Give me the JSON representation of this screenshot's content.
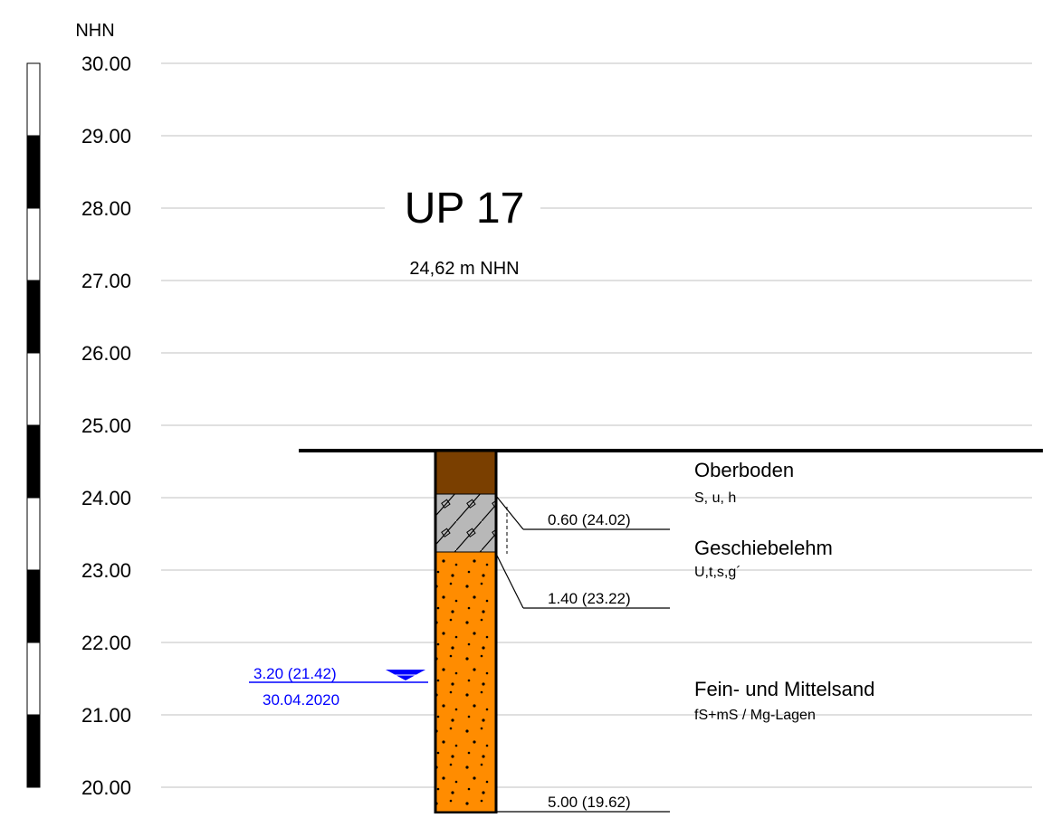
{
  "axis": {
    "unit": "NHN",
    "ticks": [
      "30.00",
      "29.00",
      "28.00",
      "27.00",
      "26.00",
      "25.00",
      "24.00",
      "23.00",
      "22.00",
      "21.00",
      "20.00"
    ]
  },
  "header": {
    "title": "UP 17",
    "elevation": "24,62 m  NHN"
  },
  "layers": [
    {
      "name": "Oberboden",
      "description": "S, u, h"
    },
    {
      "name": "Geschiebelehm",
      "description": "U,t,s,g´",
      "depth_label": "0.60 (24.02)"
    },
    {
      "name": "Fein- und Mittelsand",
      "description": "fS+mS / Mg-Lagen",
      "depth_label": "1.40 (23.22)"
    }
  ],
  "bottom_label": "5.00 (19.62)",
  "water": {
    "level": "3.20 (21.42)",
    "date": "30.04.2020"
  }
}
